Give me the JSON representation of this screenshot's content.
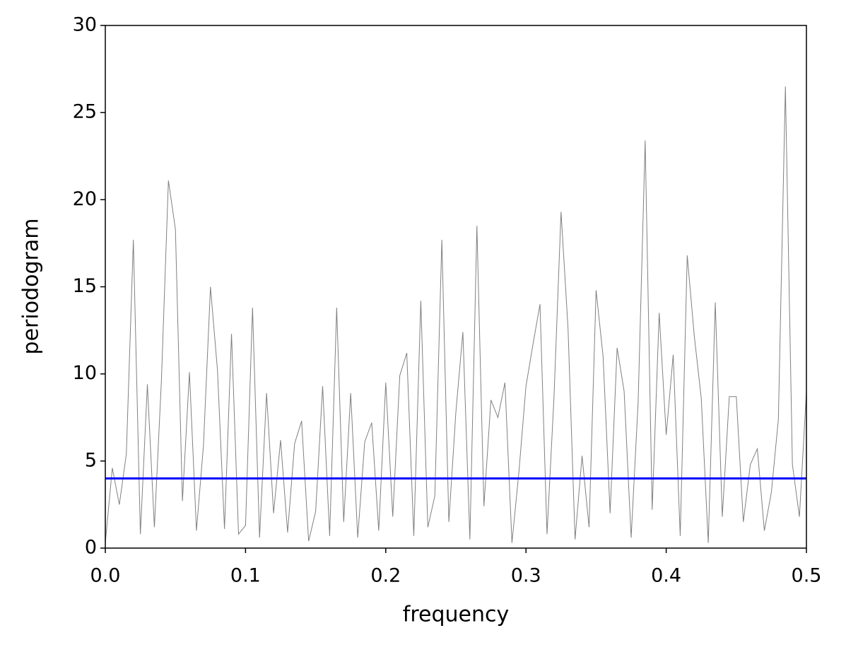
{
  "chart_data": {
    "type": "line",
    "xlabel": "frequency",
    "ylabel": "periodogram",
    "x": [
      0,
      0.005,
      0.01,
      0.015,
      0.02,
      0.025,
      0.03,
      0.035,
      0.04,
      0.045,
      0.05,
      0.055,
      0.06,
      0.065,
      0.07,
      0.075,
      0.08,
      0.085,
      0.09,
      0.095,
      0.1,
      0.105,
      0.11,
      0.115,
      0.12,
      0.125,
      0.13,
      0.135,
      0.14,
      0.145,
      0.15,
      0.155,
      0.16,
      0.165,
      0.17,
      0.175,
      0.18,
      0.185,
      0.19,
      0.195,
      0.2,
      0.205,
      0.21,
      0.215,
      0.22,
      0.225,
      0.23,
      0.235,
      0.24,
      0.245,
      0.25,
      0.255,
      0.26,
      0.265,
      0.27,
      0.275,
      0.28,
      0.285,
      0.29,
      0.295,
      0.3,
      0.305,
      0.31,
      0.315,
      0.32,
      0.325,
      0.33,
      0.335,
      0.34,
      0.345,
      0.35,
      0.355,
      0.36,
      0.365,
      0.37,
      0.375,
      0.38,
      0.385,
      0.39,
      0.395,
      0.4,
      0.405,
      0.41,
      0.415,
      0.42,
      0.425,
      0.43,
      0.435,
      0.44,
      0.445,
      0.45,
      0.455,
      0.46,
      0.465,
      0.47,
      0.475,
      0.48,
      0.485,
      0.49,
      0.495,
      0.5
    ],
    "series": [
      {
        "color": "#808080",
        "values": [
          0.3,
          4.6,
          2.5,
          5.4,
          17.7,
          0.8,
          9.4,
          1.2,
          9.6,
          21.1,
          18.3,
          2.7,
          10.1,
          1.0,
          5.9,
          15.0,
          10.2,
          1.1,
          12.3,
          0.8,
          1.3,
          13.8,
          0.6,
          8.9,
          2.0,
          6.2,
          0.9,
          6.0,
          7.3,
          0.4,
          2.1,
          9.3,
          0.7,
          13.8,
          1.5,
          8.9,
          0.6,
          6.1,
          7.2,
          1.0,
          9.5,
          1.8,
          9.9,
          11.2,
          0.7,
          14.2,
          1.2,
          3.0,
          17.7,
          1.5,
          7.8,
          12.4,
          0.5,
          18.5,
          2.4,
          8.5,
          7.5,
          9.5,
          0.3,
          4.4,
          9.3,
          11.7,
          14.0,
          0.8,
          8.7,
          19.3,
          12.6,
          0.5,
          5.3,
          1.2,
          14.8,
          11.0,
          2.0,
          11.5,
          9.0,
          0.6,
          8.4,
          23.4,
          2.2,
          13.5,
          6.5,
          11.1,
          0.7,
          16.8,
          12.2,
          8.6,
          0.3,
          14.1,
          1.8,
          8.7,
          8.7,
          1.5,
          4.8,
          5.7,
          1.0,
          3.2,
          7.4,
          26.5,
          4.8,
          1.8,
          9.0
        ]
      }
    ],
    "hline": {
      "value": 4,
      "color": "#0000ff"
    },
    "xlim": [
      0,
      0.5
    ],
    "xticks": [
      {
        "value": 0,
        "label": "0.0"
      },
      0.1,
      0.2,
      0.3,
      0.4,
      0.5
    ],
    "ylim": [
      0,
      30
    ],
    "yticks": [
      0,
      5,
      10,
      15,
      20,
      25,
      30
    ]
  }
}
